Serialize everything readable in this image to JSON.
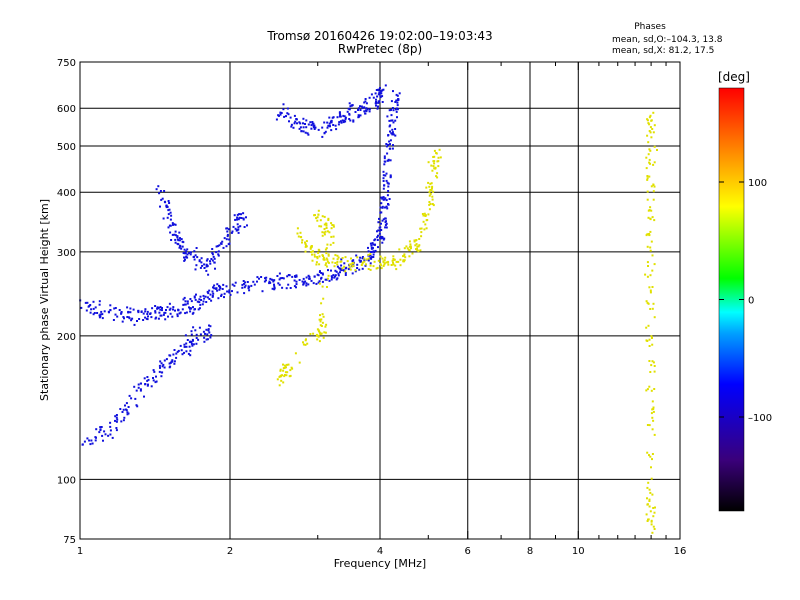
{
  "chart_data": {
    "type": "scatter",
    "title": "Tromsø 20160426 19:02:00–19:03:43",
    "subtitle": "RwPretec (8p)",
    "xlabel": "Frequency [MHz]",
    "ylabel": "Stationary phase Virtual Height [km]",
    "xscale": "log",
    "yscale": "log",
    "xlim": [
      1,
      16
    ],
    "ylim": [
      75,
      750
    ],
    "xticks": [
      1,
      2,
      4,
      6,
      8,
      10,
      16
    ],
    "xtick_labels": [
      "1",
      "2",
      "4",
      "6",
      "8",
      "10",
      "16"
    ],
    "yticks": [
      75,
      100,
      200,
      300,
      400,
      500,
      600,
      750
    ],
    "ytick_labels": [
      "75",
      "100",
      "200",
      "300",
      "400",
      "500",
      "600",
      "750"
    ],
    "grid": true,
    "phases_box": {
      "title": "Phases",
      "line1": "mean, sd,O:–104.3, 13.8",
      "line2": "mean, sd,X:  81.2, 17.5"
    },
    "colorbar": {
      "label": "[deg]",
      "range": [
        -180,
        180
      ],
      "ticks": [
        100,
        0,
        -100
      ],
      "tick_labels": [
        "100",
        "0",
        "–100"
      ],
      "colors": [
        "#000000",
        "#3a007a",
        "#0000ff",
        "#00a0ff",
        "#00ffff",
        "#00ff00",
        "#ffff00",
        "#ff8000",
        "#ff0000"
      ]
    },
    "series": [
      {
        "phase_deg": -110,
        "color": "#1010dd",
        "traces": [
          {
            "desc": "O-mode F trace",
            "points": [
              [
                1.0,
                232
              ],
              [
                1.1,
                226
              ],
              [
                1.2,
                222
              ],
              [
                1.3,
                221
              ],
              [
                1.4,
                222
              ],
              [
                1.5,
                224
              ],
              [
                1.6,
                228
              ],
              [
                1.7,
                235
              ],
              [
                1.8,
                242
              ],
              [
                1.9,
                248
              ],
              [
                2.0,
                252
              ],
              [
                2.2,
                256
              ],
              [
                2.4,
                258
              ],
              [
                2.6,
                260
              ],
              [
                2.8,
                262
              ],
              [
                3.0,
                265
              ],
              [
                3.2,
                270
              ],
              [
                3.4,
                276
              ],
              [
                3.6,
                283
              ],
              [
                3.8,
                293
              ],
              [
                3.9,
                305
              ],
              [
                4.0,
                325
              ],
              [
                4.05,
                350
              ],
              [
                4.1,
                390
              ],
              [
                4.15,
                440
              ],
              [
                4.2,
                500
              ],
              [
                4.25,
                560
              ],
              [
                4.3,
                630
              ]
            ]
          },
          {
            "desc": "upper cusp",
            "points": [
              [
                2.5,
                590
              ],
              [
                2.7,
                560
              ],
              [
                2.9,
                545
              ],
              [
                3.1,
                550
              ],
              [
                3.3,
                565
              ],
              [
                3.5,
                585
              ],
              [
                3.7,
                605
              ],
              [
                3.9,
                625
              ],
              [
                4.0,
                640
              ]
            ]
          },
          {
            "desc": "low band",
            "points": [
              [
                1.0,
                120
              ],
              [
                1.1,
                125
              ],
              [
                1.2,
                135
              ],
              [
                1.3,
                150
              ],
              [
                1.4,
                165
              ],
              [
                1.5,
                175
              ],
              [
                1.6,
                185
              ],
              [
                1.7,
                195
              ],
              [
                1.8,
                205
              ]
            ]
          },
          {
            "desc": "spread",
            "points": [
              [
                1.45,
                400
              ],
              [
                1.5,
                360
              ],
              [
                1.55,
                320
              ],
              [
                1.6,
                300
              ],
              [
                1.7,
                290
              ],
              [
                1.8,
                275
              ],
              [
                1.9,
                300
              ],
              [
                2.0,
                330
              ],
              [
                2.1,
                350
              ]
            ]
          }
        ]
      },
      {
        "phase_deg": 95,
        "color": "#e0e000",
        "traces": [
          {
            "desc": "X-mode F trace",
            "points": [
              [
                2.7,
                330
              ],
              [
                2.9,
                300
              ],
              [
                3.1,
                290
              ],
              [
                3.3,
                286
              ],
              [
                3.6,
                284
              ],
              [
                4.0,
                285
              ],
              [
                4.3,
                290
              ],
              [
                4.6,
                300
              ],
              [
                4.8,
                320
              ],
              [
                5.0,
                370
              ],
              [
                5.1,
                420
              ],
              [
                5.2,
                480
              ]
            ]
          },
          {
            "desc": "cluster 3MHz",
            "points": [
              [
                3.0,
                360
              ],
              [
                3.1,
                340
              ],
              [
                3.2,
                330
              ],
              [
                3.0,
                200
              ],
              [
                3.1,
                210
              ],
              [
                2.5,
                160
              ],
              [
                2.6,
                170
              ]
            ]
          },
          {
            "desc": "column 14MHz",
            "points": [
              [
                14,
                600
              ],
              [
                14,
                500
              ],
              [
                14,
                400
              ],
              [
                14,
                300
              ],
              [
                14,
                200
              ],
              [
                14,
                150
              ],
              [
                14,
                100
              ],
              [
                14,
                80
              ]
            ]
          }
        ]
      }
    ]
  }
}
